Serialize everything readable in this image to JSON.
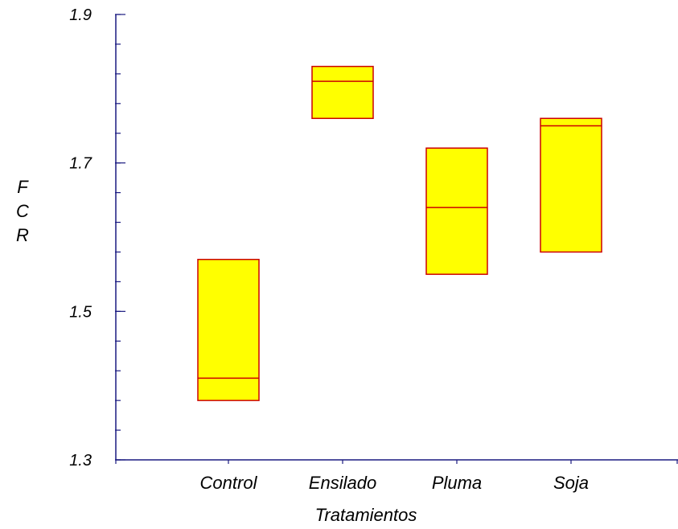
{
  "chart_data": {
    "type": "box",
    "title": "",
    "xlabel": "Tratamientos",
    "ylabel": "FCR",
    "ylim": [
      1.3,
      1.9
    ],
    "yticks_major": [
      1.3,
      1.5,
      1.7,
      1.9
    ],
    "yticks_major_labels": [
      "1.3",
      "1.5",
      "1.7",
      "1.9"
    ],
    "ytick_minor_step": 0.04,
    "grid": false,
    "legend": "none",
    "categories": [
      "Control",
      "Ensilado",
      "Pluma",
      "Soja"
    ],
    "boxes": [
      {
        "category": "Control",
        "low": 1.38,
        "median": 1.41,
        "high": 1.57
      },
      {
        "category": "Ensilado",
        "low": 1.76,
        "median": 1.81,
        "high": 1.83
      },
      {
        "category": "Pluma",
        "low": 1.55,
        "median": 1.64,
        "high": 1.72
      },
      {
        "category": "Soja",
        "low": 1.58,
        "median": 1.75,
        "high": 1.76
      }
    ],
    "colors": {
      "box_fill": "#ffff00",
      "box_stroke": "#cc0000",
      "axis": "#1a1a80"
    }
  }
}
